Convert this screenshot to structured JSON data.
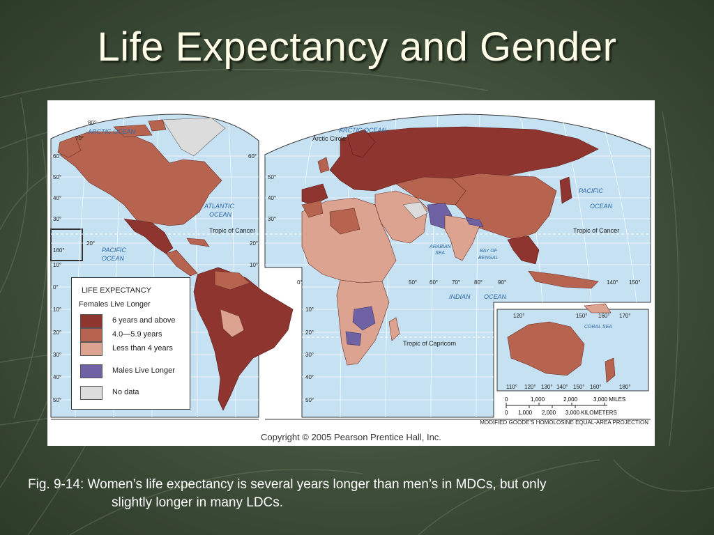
{
  "slide": {
    "title": "Life Expectancy and Gender",
    "caption_line1": "Fig. 9-14: Women’s life expectancy is several years longer than men’s in MDCs, but only",
    "caption_line2": "slightly longer in many LDCs."
  },
  "map": {
    "copyright": "Copyright © 2005 Pearson Prentice Hall, Inc.",
    "projection": "MODIFIED GOODE’S HOMOLOSINE EQUAL-AREA PROJECTION",
    "labels": {
      "arctic_ocean": "ARCTIC OCEAN",
      "arctic_circle": "Arctic Circle",
      "atlantic_ocean_1": "ATLANTIC",
      "atlantic_ocean_2": "OCEAN",
      "pacific_ocean_1": "PACIFIC",
      "pacific_ocean_2": "OCEAN",
      "tropic_cancer": "Tropic of Cancer",
      "tropic_capricorn": "Tropic of Capricorn",
      "indian": "INDIAN",
      "ocean": "OCEAN",
      "arabian_sea_1": "ARABIAN",
      "arabian_sea_2": "SEA",
      "bay_bengal_1": "BAY OF",
      "bay_bengal_2": "BENGAL",
      "coral_sea": "CORAL   SEA"
    },
    "scale": {
      "miles_ticks": [
        "0",
        "1,000",
        "2,000",
        "3,000 MILES"
      ],
      "km_ticks": [
        "0",
        "1,000",
        "2,000",
        "3,000 KILOMETERS"
      ]
    },
    "lat_labels_left": [
      "80°",
      "70°",
      "60°",
      "50°",
      "40°",
      "30°",
      "20°",
      "10°",
      "0°",
      "10°",
      "20°",
      "30°",
      "40°",
      "50°"
    ],
    "lat_labels_mid": [
      "60°",
      "50°",
      "40°",
      "30°",
      "20°",
      "10°",
      "0°",
      "10°",
      "20°",
      "30°",
      "40°",
      "50°"
    ],
    "lon_labels_bottom": [
      "50°",
      "60°",
      "70°",
      "80°",
      "90°",
      "140°",
      "150°"
    ],
    "aus_lon_top": [
      "120°",
      "150°",
      "160°",
      "170°"
    ],
    "aus_lon_bottom": [
      "110°",
      "120°",
      "130°",
      "140°",
      "150°",
      "160°",
      "180°"
    ],
    "misc_labels": [
      "160°",
      "20°",
      "10°",
      "20°",
      "30°",
      "40°",
      "50°",
      "60°",
      "50°",
      "40°",
      "30°",
      "20°",
      "10°",
      "20°",
      "30°",
      "40°",
      "50°"
    ]
  },
  "legend": {
    "title": "LIFE EXPECTANCY",
    "subtitle": "Females Live Longer",
    "items": [
      {
        "label": "6 years and above",
        "color": "#8e3530"
      },
      {
        "label": "4.0—5.9 years",
        "color": "#b66450"
      },
      {
        "label": "Less than 4 years",
        "color": "#dca490"
      },
      {
        "label": "Males Live Longer",
        "color": "#6e62a4"
      },
      {
        "label": "No data",
        "color": "#dcdcdc"
      }
    ]
  },
  "colors": {
    "ocean": "#c5e1f2",
    "dark": "#8e3530",
    "medium": "#b66450",
    "light": "#dca490",
    "males": "#6e62a4",
    "nodata": "#dcdcdc"
  }
}
